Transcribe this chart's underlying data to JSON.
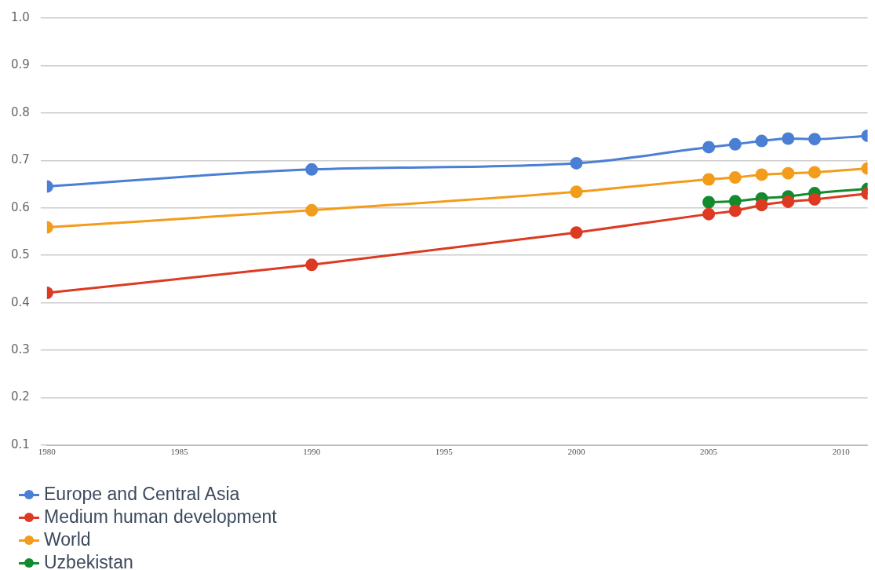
{
  "chart_data": {
    "type": "line",
    "x": [
      1980,
      1990,
      2000,
      2005,
      2006,
      2007,
      2008,
      2009,
      2011
    ],
    "series": [
      {
        "name": "Europe and Central Asia",
        "color": "#4a7fd4",
        "values": [
          0.645,
          0.681,
          0.694,
          0.728,
          0.734,
          0.741,
          0.746,
          0.745,
          0.752
        ]
      },
      {
        "name": "Medium human development",
        "color": "#dc3a22",
        "values": [
          0.421,
          0.48,
          0.548,
          0.587,
          0.594,
          0.606,
          0.613,
          0.618,
          0.63
        ]
      },
      {
        "name": "World",
        "color": "#f39c1c",
        "values": [
          0.559,
          0.595,
          0.634,
          0.66,
          0.664,
          0.67,
          0.673,
          0.675,
          0.683
        ]
      },
      {
        "name": "Uzbekistan",
        "color": "#148a2e",
        "values": [
          null,
          null,
          null,
          0.612,
          0.614,
          0.62,
          0.624,
          0.631,
          0.64
        ]
      }
    ],
    "xlim": [
      1980,
      2011
    ],
    "xticks": [
      1980,
      1985,
      1990,
      1995,
      2000,
      2005,
      2010
    ],
    "ylim": [
      0.1,
      1.0
    ],
    "yticks": [
      0.1,
      0.2,
      0.3,
      0.4,
      0.5,
      0.6,
      0.7,
      0.8,
      0.9,
      {
        "value": 1,
        "label": "1.0"
      }
    ],
    "grid": "y",
    "legend": "bottom left",
    "marker": "circle",
    "line_style": "solid"
  }
}
